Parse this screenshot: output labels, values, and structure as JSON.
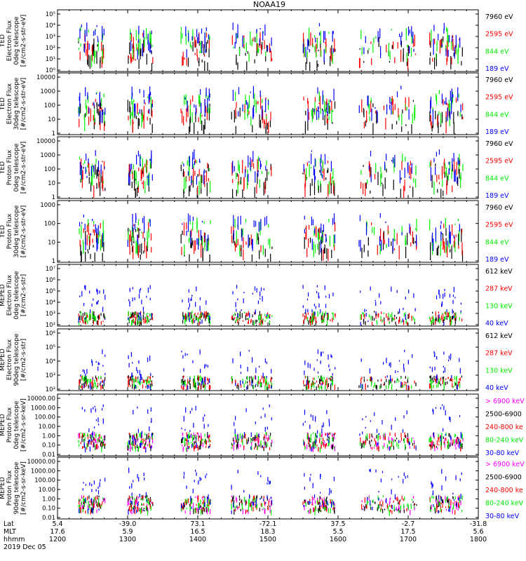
{
  "title": "NOAA19",
  "date_label": "2019 Dec 05",
  "colors": {
    "black": "#000000",
    "red": "#ff0000",
    "green": "#00ee00",
    "blue": "#0000ff",
    "magenta": "#ff00ff"
  },
  "footer": {
    "row_labels": [
      "Lat",
      "MLT",
      "hhmm"
    ],
    "lat": [
      "5.4",
      "-39.0",
      "73.1",
      "-72.1",
      "37.5",
      "-2.7",
      "-31.8"
    ],
    "mlt": [
      "17.6",
      "5.9",
      "16.5",
      "18.3",
      "5.5",
      "17.5",
      "5.6"
    ],
    "hhmm": [
      "1200",
      "1300",
      "1400",
      "1500",
      "1600",
      "1700",
      "1800"
    ]
  },
  "chart_data": [
    {
      "type": "scatter",
      "panel": "ted-e-0",
      "ylabel": [
        "TED",
        "Electron Flux",
        "0deg telescope",
        "[#/cm2-s-str-eV]"
      ],
      "yticks": [
        "10⁰",
        "10¹",
        "10²",
        "10³",
        "10⁴",
        "10⁵"
      ],
      "ylim": [
        1,
        100000
      ],
      "log": true,
      "legend": [
        {
          "name": "7960 eV",
          "color": "black"
        },
        {
          "name": "2595 eV",
          "color": "red"
        },
        {
          "name": "844 eV",
          "color": "green"
        },
        {
          "name": "189 eV",
          "color": "blue"
        }
      ]
    },
    {
      "type": "scatter",
      "panel": "ted-e-30",
      "ylabel": [
        "TED",
        "Electron Flux",
        "30deg telescope",
        "[#/cm2-s-str-eV]"
      ],
      "yticks": [
        "1",
        "10",
        "100",
        "1000",
        "10000"
      ],
      "ylim": [
        1,
        10000
      ],
      "log": true,
      "legend": [
        {
          "name": "7960 eV",
          "color": "black"
        },
        {
          "name": "2595 eV",
          "color": "red"
        },
        {
          "name": "844 eV",
          "color": "green"
        },
        {
          "name": "189 eV",
          "color": "blue"
        }
      ]
    },
    {
      "type": "scatter",
      "panel": "ted-p-0",
      "ylabel": [
        "TED",
        "Proton Flux",
        "0deg telescope",
        "[#/cm2-s-str-eV]"
      ],
      "yticks": [
        "1",
        "10",
        "100",
        "1000",
        "10000"
      ],
      "ylim": [
        1,
        10000
      ],
      "log": true,
      "legend": [
        {
          "name": "7960 eV",
          "color": "black"
        },
        {
          "name": "2595 eV",
          "color": "red"
        },
        {
          "name": "844 eV",
          "color": "green"
        },
        {
          "name": "189 eV",
          "color": "blue"
        }
      ]
    },
    {
      "type": "scatter",
      "panel": "ted-p-30",
      "ylabel": [
        "TED",
        "Proton Flux",
        "30deg telescope",
        "[#/cm2-s-str-eV]"
      ],
      "yticks": [
        "1",
        "10",
        "100",
        "1000"
      ],
      "ylim": [
        1,
        10000
      ],
      "log": true,
      "legend": [
        {
          "name": "7960 eV",
          "color": "black"
        },
        {
          "name": "2595 eV",
          "color": "red"
        },
        {
          "name": "844 eV",
          "color": "green"
        },
        {
          "name": "189 eV",
          "color": "blue"
        }
      ]
    },
    {
      "type": "scatter",
      "panel": "meped-e-0",
      "ylabel": [
        "MEPED",
        "Electron Flux",
        "0deg telescope",
        "[#/cm2-s-str]"
      ],
      "yticks": [
        "10²",
        "10³",
        "10⁴",
        "10⁵",
        "10⁶",
        "10⁷"
      ],
      "ylim": [
        100,
        10000000
      ],
      "log": true,
      "legend": [
        {
          "name": "612 keV",
          "color": "black"
        },
        {
          "name": "287 keV",
          "color": "red"
        },
        {
          "name": "130 keV",
          "color": "green"
        },
        {
          "name": "40 keV",
          "color": "blue"
        }
      ]
    },
    {
      "type": "scatter",
      "panel": "meped-e-90",
      "ylabel": [
        "MEPED",
        "Electron Flux",
        "90deg telescope",
        "[#/cm2-s-str]"
      ],
      "yticks": [
        "10²",
        "10³",
        "10⁴",
        "10⁵",
        "10⁶"
      ],
      "ylim": [
        100,
        10000000
      ],
      "log": true,
      "legend": [
        {
          "name": "612 keV",
          "color": "black"
        },
        {
          "name": "287 keV",
          "color": "red"
        },
        {
          "name": "130 keV",
          "color": "green"
        },
        {
          "name": "40 keV",
          "color": "blue"
        }
      ]
    },
    {
      "type": "scatter",
      "panel": "meped-p-0",
      "ylabel": [
        "MEPED",
        "Proton Flux",
        "0deg telescope",
        "[#/cm2-s-sr-keV]"
      ],
      "yticks": [
        "0.01",
        "0.10",
        "1.00",
        "10.00",
        "100.00",
        "1000.00",
        "10000.00"
      ],
      "ylim": [
        0.01,
        10000
      ],
      "log": true,
      "legend": [
        {
          "name": "> 6900 keV",
          "color": "magenta"
        },
        {
          "name": "2500-6900",
          "color": "black"
        },
        {
          "name": "240-800 ke",
          "color": "red"
        },
        {
          "name": "80-240 keV",
          "color": "green"
        },
        {
          "name": "30-80 keV",
          "color": "blue"
        }
      ]
    },
    {
      "type": "scatter",
      "panel": "meped-p-90",
      "ylabel": [
        "MEPED",
        "Proton Flux",
        "90deg telescope",
        "[#/cm2-s-sr-keV]"
      ],
      "yticks": [
        "0.01",
        "0.10",
        "1.00",
        "10.00",
        "100.00",
        "1000.00",
        "10000.00"
      ],
      "ylim": [
        0.01,
        10000
      ],
      "log": true,
      "legend": [
        {
          "name": "> 6900 keV",
          "color": "magenta"
        },
        {
          "name": "2500-6900",
          "color": "black"
        },
        {
          "name": "240-800 ke",
          "color": "red"
        },
        {
          "name": "80-240 keV",
          "color": "green"
        },
        {
          "name": "30-80 keV",
          "color": "blue"
        }
      ]
    }
  ]
}
